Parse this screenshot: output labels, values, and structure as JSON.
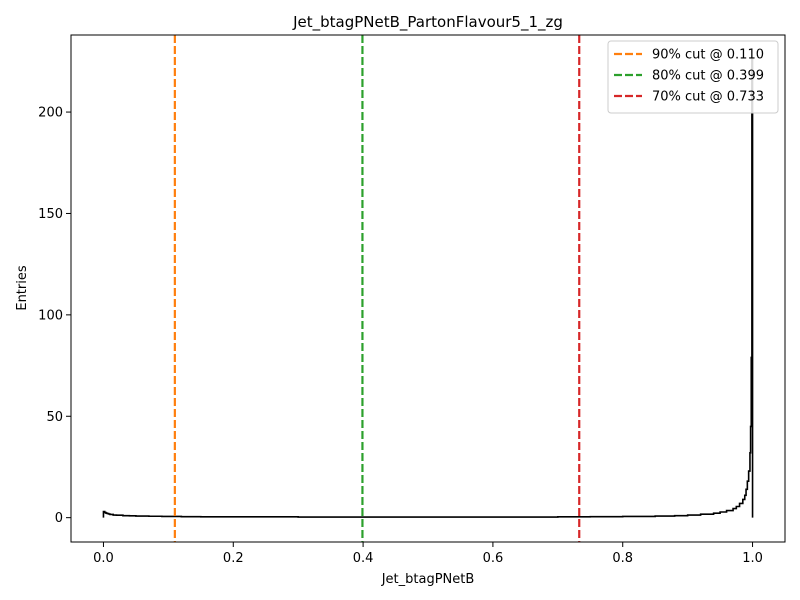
{
  "chart_data": {
    "type": "bar",
    "title": "Jet_btagPNetB_PartonFlavour5_1_zg",
    "xlabel": "Jet_btagPNetB",
    "ylabel": "Entries",
    "xlim": [
      -0.05,
      1.05
    ],
    "ylim": [
      -12,
      238
    ],
    "xticks": [
      0.0,
      0.2,
      0.4,
      0.6,
      0.8,
      1.0
    ],
    "xtick_labels": [
      "0.0",
      "0.2",
      "0.4",
      "0.6",
      "0.8",
      "1.0"
    ],
    "yticks": [
      0,
      50,
      100,
      150,
      200
    ],
    "ytick_labels": [
      "0",
      "50",
      "100",
      "150",
      "200"
    ],
    "grid": false,
    "legend_position": "top-right",
    "histogram_bins": [
      [
        0.0,
        3.0
      ],
      [
        0.002,
        2.5
      ],
      [
        0.004,
        2.2
      ],
      [
        0.006,
        2.0
      ],
      [
        0.008,
        1.8
      ],
      [
        0.01,
        1.6
      ],
      [
        0.015,
        1.3
      ],
      [
        0.02,
        1.2
      ],
      [
        0.03,
        1.0
      ],
      [
        0.04,
        0.9
      ],
      [
        0.05,
        0.8
      ],
      [
        0.07,
        0.7
      ],
      [
        0.09,
        0.6
      ],
      [
        0.12,
        0.5
      ],
      [
        0.15,
        0.4
      ],
      [
        0.2,
        0.4
      ],
      [
        0.3,
        0.3
      ],
      [
        0.4,
        0.3
      ],
      [
        0.5,
        0.3
      ],
      [
        0.6,
        0.3
      ],
      [
        0.7,
        0.4
      ],
      [
        0.75,
        0.5
      ],
      [
        0.8,
        0.6
      ],
      [
        0.85,
        0.8
      ],
      [
        0.88,
        1.0
      ],
      [
        0.9,
        1.3
      ],
      [
        0.92,
        1.7
      ],
      [
        0.94,
        2.2
      ],
      [
        0.95,
        2.8
      ],
      [
        0.96,
        3.5
      ],
      [
        0.97,
        4.5
      ],
      [
        0.975,
        5.5
      ],
      [
        0.98,
        7.0
      ],
      [
        0.985,
        9.0
      ],
      [
        0.988,
        11.0
      ],
      [
        0.99,
        14.0
      ],
      [
        0.992,
        18.0
      ],
      [
        0.994,
        23.0
      ],
      [
        0.996,
        32.0
      ],
      [
        0.997,
        45.0
      ],
      [
        0.998,
        79.0
      ],
      [
        0.999,
        226.0
      ]
    ],
    "series": [
      {
        "name": "90% cut @ 0.110",
        "x": 0.11,
        "color": "#ff7f0e"
      },
      {
        "name": "80% cut @ 0.399",
        "x": 0.399,
        "color": "#2ca02c"
      },
      {
        "name": "70% cut @ 0.733",
        "x": 0.733,
        "color": "#d62728"
      }
    ]
  }
}
